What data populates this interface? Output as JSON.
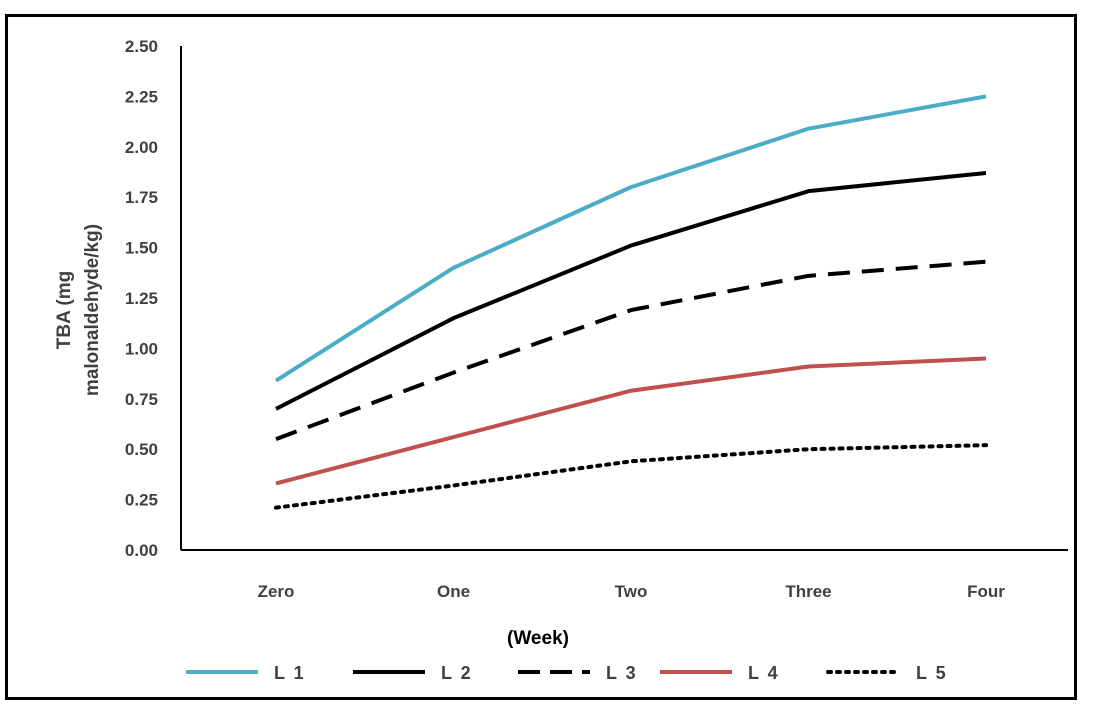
{
  "chart_data": {
    "type": "line",
    "categories": [
      "Zero",
      "One",
      "Two",
      "Three",
      "Four"
    ],
    "xlabel": "(Week)",
    "ylabel_lines": [
      "TBA (mg",
      "malonaldehyde/kg)"
    ],
    "ylim": [
      0,
      2.5
    ],
    "yticks": [
      "0.00",
      "0.25",
      "0.50",
      "0.75",
      "1.00",
      "1.25",
      "1.50",
      "1.75",
      "2.00",
      "2.25",
      "2.50"
    ],
    "grid": false,
    "legend_position": "bottom",
    "series": [
      {
        "name": "L 1",
        "values": [
          0.84,
          1.4,
          1.8,
          2.09,
          2.25
        ],
        "color": "#4bacc6",
        "dash": "solid"
      },
      {
        "name": "L 2",
        "values": [
          0.7,
          1.15,
          1.51,
          1.78,
          1.87
        ],
        "color": "#000000",
        "dash": "solid"
      },
      {
        "name": "L 3",
        "values": [
          0.55,
          0.88,
          1.19,
          1.36,
          1.43
        ],
        "color": "#000000",
        "dash": "dashed"
      },
      {
        "name": "L 4",
        "values": [
          0.33,
          0.56,
          0.79,
          0.91,
          0.95
        ],
        "color": "#c0504d",
        "dash": "solid"
      },
      {
        "name": "L 5",
        "values": [
          0.21,
          0.32,
          0.44,
          0.5,
          0.52
        ],
        "color": "#000000",
        "dash": "dotted"
      }
    ]
  }
}
